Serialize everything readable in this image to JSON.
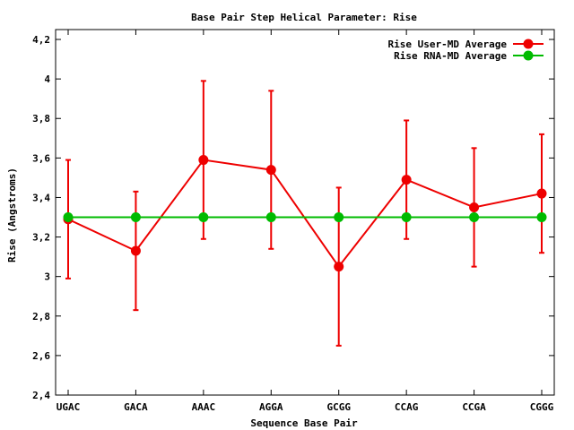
{
  "chart_data": {
    "type": "line",
    "title": "Base Pair Step Helical Parameter: Rise",
    "xlabel": "Sequence Base Pair",
    "ylabel": "Rise (Angstroms)",
    "categories": [
      "UGAC",
      "GACA",
      "AAAC",
      "AGGA",
      "GCGG",
      "CCAG",
      "CCGA",
      "CGGG"
    ],
    "ylim": [
      2.4,
      4.25
    ],
    "yticks": [
      2.4,
      2.6,
      2.8,
      3.0,
      3.2,
      3.4,
      3.6,
      3.8,
      4.0,
      4.2
    ],
    "ytick_labels": [
      "2,4",
      "2,6",
      "2,8",
      "3",
      "3,2",
      "3,4",
      "3,6",
      "3,8",
      "4",
      "4,2"
    ],
    "grid": false,
    "legend_position": "top-right",
    "series": [
      {
        "name": "Rise User-MD Average",
        "color": "#ee0000",
        "values": [
          3.29,
          3.13,
          3.59,
          3.54,
          3.05,
          3.49,
          3.35,
          3.42
        ],
        "error_low": [
          2.99,
          2.83,
          3.19,
          3.14,
          2.65,
          3.19,
          3.05,
          3.12
        ],
        "error_high": [
          3.59,
          3.43,
          3.99,
          3.94,
          3.45,
          3.79,
          3.65,
          3.72
        ]
      },
      {
        "name": "Rise RNA-MD Average",
        "color": "#00bb00",
        "values": [
          3.3,
          3.3,
          3.3,
          3.3,
          3.3,
          3.3,
          3.3,
          3.3
        ]
      }
    ]
  }
}
